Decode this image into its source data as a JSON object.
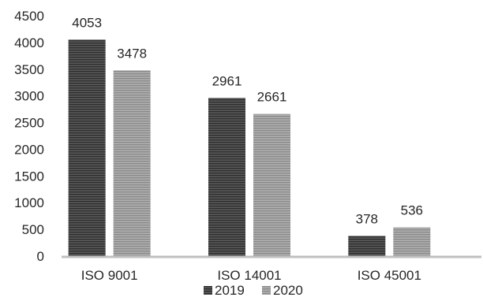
{
  "chart_data": {
    "type": "bar",
    "categories": [
      "ISO 9001",
      "ISO 14001",
      "ISO 45001"
    ],
    "series": [
      {
        "name": "2019",
        "values": [
          4053,
          2961,
          378
        ],
        "color": "#4a4a4a",
        "pattern": "horizontal-stripes"
      },
      {
        "name": "2020",
        "values": [
          3478,
          2661,
          536
        ],
        "color": "#9a9a9a",
        "pattern": "horizontal-stripes"
      }
    ],
    "title": "",
    "xlabel": "",
    "ylabel": "",
    "ylim": [
      0,
      4500
    ],
    "yticks": [
      0,
      500,
      1000,
      1500,
      2000,
      2500,
      3000,
      3500,
      4000,
      4500
    ],
    "data_labels": true,
    "grid": false,
    "legend": "bottom-center"
  }
}
